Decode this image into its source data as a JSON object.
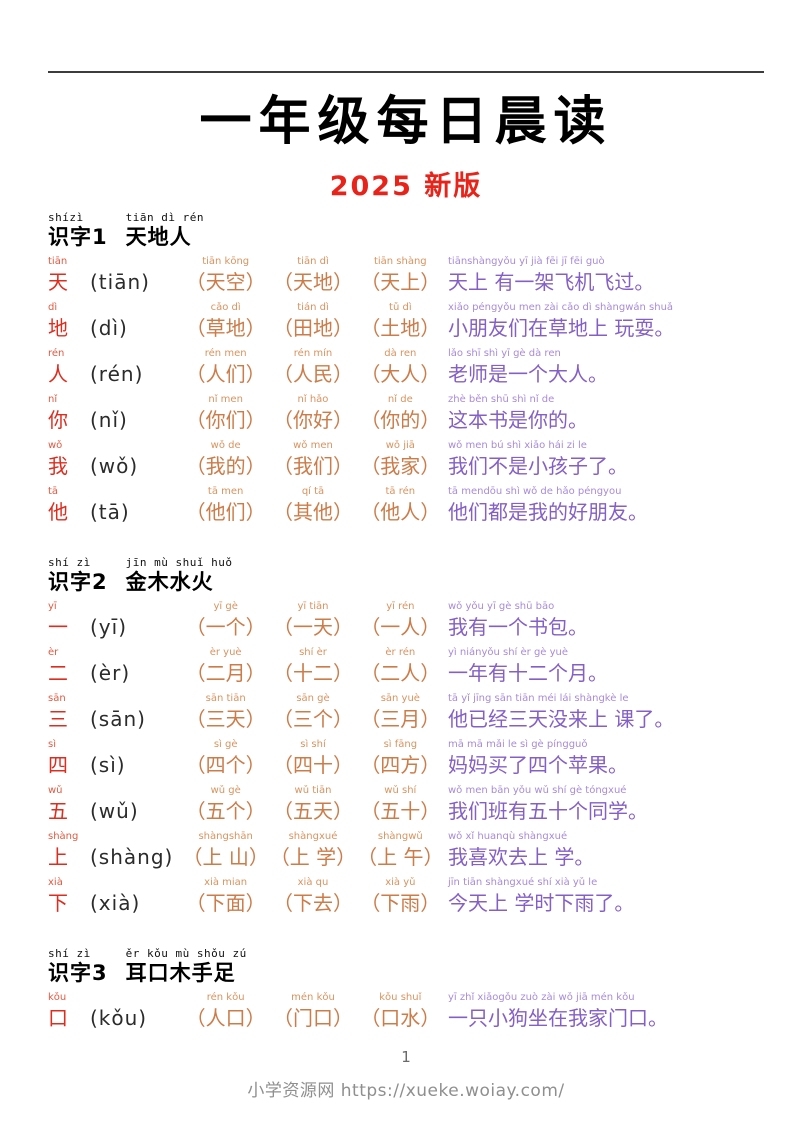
{
  "page": {
    "title": "一年级每日晨读",
    "edition": "2025 新版",
    "page_number": "1",
    "footer": "小学资源网 https://xueke.woiay.com/"
  },
  "colors": {
    "edition_red": "#e8231a",
    "char_red": "#dd2d1f",
    "char_pinyin_red": "#e05a41",
    "word_orange": "#cc7c49",
    "word_pinyin_orange": "#d8935f",
    "sentence_purple": "#8460c6",
    "sentence_pinyin_purple": "#a78bd8",
    "footer_gray": "#8f8f8f"
  },
  "sections": [
    {
      "label": "识字1",
      "label_pinyin": "shízì",
      "chars": "天地人",
      "chars_pinyin": "tiān dì rén",
      "rows": [
        {
          "char": "天",
          "char_pinyin": "tiān",
          "reading": "(tiān)",
          "words": [
            {
              "pinyin": "tiān kōng",
              "text": "（天空）"
            },
            {
              "pinyin": "tiān dì",
              "text": "（天地）"
            },
            {
              "pinyin": "tiān shàng",
              "text": "（天上）"
            }
          ],
          "sentence_pinyin": "tiānshàngyǒu yī  jià fēi jī  fēi guò",
          "sentence": "天上 有一架飞机飞过。"
        },
        {
          "char": "地",
          "char_pinyin": "dì",
          "reading": "(dì)",
          "words": [
            {
              "pinyin": "cǎo dì",
              "text": "（草地）"
            },
            {
              "pinyin": "tián dì",
              "text": "（田地）"
            },
            {
              "pinyin": "tǔ dì",
              "text": "（土地）"
            }
          ],
          "sentence_pinyin": "xiǎo péngyǒu men zài  cǎo dì  shàngwán shuǎ",
          "sentence": "小朋友们在草地上 玩耍。"
        },
        {
          "char": "人",
          "char_pinyin": "rén",
          "reading": "(rén)",
          "words": [
            {
              "pinyin": "rén men",
              "text": "（人们）"
            },
            {
              "pinyin": "rén mín",
              "text": "（人民）"
            },
            {
              "pinyin": "dà ren",
              "text": "（大人）"
            }
          ],
          "sentence_pinyin": "lǎo shī shì yī  gè dà ren",
          "sentence": "老师是一个大人。"
        },
        {
          "char": "你",
          "char_pinyin": "nǐ",
          "reading": "(nǐ)",
          "words": [
            {
              "pinyin": "nǐ men",
              "text": "（你们）"
            },
            {
              "pinyin": "nǐ hǎo",
              "text": "（你好）"
            },
            {
              "pinyin": "nǐ de",
              "text": "（你的）"
            }
          ],
          "sentence_pinyin": "zhè běn shū shì nǐ  de",
          "sentence": "这本书是你的。"
        },
        {
          "char": "我",
          "char_pinyin": "wǒ",
          "reading": "(wǒ)",
          "words": [
            {
              "pinyin": "wǒ de",
              "text": "（我的）"
            },
            {
              "pinyin": "wǒ men",
              "text": "（我们）"
            },
            {
              "pinyin": "wǒ jiā",
              "text": "（我家）"
            }
          ],
          "sentence_pinyin": "wǒ men bú shì xiǎo hái zi  le",
          "sentence": "我们不是小孩子了。"
        },
        {
          "char": "他",
          "char_pinyin": "tā",
          "reading": "(tā)",
          "words": [
            {
              "pinyin": "tā men",
              "text": "（他们）"
            },
            {
              "pinyin": "qí tā",
              "text": "（其他）"
            },
            {
              "pinyin": "tā rén",
              "text": "（他人）"
            }
          ],
          "sentence_pinyin": "tā  mendōu shì wǒ  de  hǎo péngyou",
          "sentence": "他们都是我的好朋友。"
        }
      ]
    },
    {
      "label": "识字2",
      "label_pinyin": "shí zì",
      "chars": "金木水火",
      "chars_pinyin": "jīn mù shuǐ huǒ",
      "rows": [
        {
          "char": "一",
          "char_pinyin": "yī",
          "reading": "(yī)",
          "words": [
            {
              "pinyin": "yī gè",
              "text": "（一个）"
            },
            {
              "pinyin": "yī tiān",
              "text": "（一天）"
            },
            {
              "pinyin": "yī rén",
              "text": "（一人）"
            }
          ],
          "sentence_pinyin": "wǒ yǒu yī  gè shū bāo",
          "sentence": "我有一个书包。"
        },
        {
          "char": "二",
          "char_pinyin": "èr",
          "reading": "(èr)",
          "words": [
            {
              "pinyin": "èr yuè",
              "text": "（二月）"
            },
            {
              "pinyin": "shí èr",
              "text": "（十二）"
            },
            {
              "pinyin": "èr rén",
              "text": "（二人）"
            }
          ],
          "sentence_pinyin": "yì  niányǒu shí èr  gè  yuè",
          "sentence": "一年有十二个月。"
        },
        {
          "char": "三",
          "char_pinyin": "sān",
          "reading": "(sān)",
          "words": [
            {
              "pinyin": "sān tiān",
              "text": "（三天）"
            },
            {
              "pinyin": "sān gè",
              "text": "（三个）"
            },
            {
              "pinyin": "sān yuè",
              "text": "（三月）"
            }
          ],
          "sentence_pinyin": "tā  yǐ  jīng sān tiān méi lái  shàngkè  le",
          "sentence": "他已经三天没来上 课了。"
        },
        {
          "char": "四",
          "char_pinyin": "sì",
          "reading": "(sì)",
          "words": [
            {
              "pinyin": "sì gè",
              "text": "（四个）"
            },
            {
              "pinyin": "sì shí",
              "text": "（四十）"
            },
            {
              "pinyin": "sì fāng",
              "text": "（四方）"
            }
          ],
          "sentence_pinyin": "mā mā mǎi le  sì  gè píngguǒ",
          "sentence": "妈妈买了四个苹果。"
        },
        {
          "char": "五",
          "char_pinyin": "wǔ",
          "reading": "(wǔ)",
          "words": [
            {
              "pinyin": "wǔ gè",
              "text": "（五个）"
            },
            {
              "pinyin": "wǔ tiān",
              "text": "（五天）"
            },
            {
              "pinyin": "wǔ shí",
              "text": "（五十）"
            }
          ],
          "sentence_pinyin": "wǒ men bān yǒu wǔ  shí gè  tóngxué",
          "sentence": "我们班有五十个同学。"
        },
        {
          "char": "上",
          "char_pinyin": "shàng",
          "reading": "(shàng)",
          "words": [
            {
              "pinyin": "shàngshān",
              "text": "（上 山）"
            },
            {
              "pinyin": "shàngxué",
              "text": "（上 学）"
            },
            {
              "pinyin": "shàngwǔ",
              "text": "（上 午）"
            }
          ],
          "sentence_pinyin": "wǒ xǐ  huanqù  shàngxué",
          "sentence": "我喜欢去上 学。"
        },
        {
          "char": "下",
          "char_pinyin": "xià",
          "reading": "(xià)",
          "words": [
            {
              "pinyin": "xià mian",
              "text": "（下面）"
            },
            {
              "pinyin": "xià qu",
              "text": "（下去）"
            },
            {
              "pinyin": "xià yǔ",
              "text": "（下雨）"
            }
          ],
          "sentence_pinyin": "jīn  tiān shàngxué shí  xià  yǔ  le",
          "sentence": "今天上 学时下雨了。"
        }
      ]
    },
    {
      "label": "识字3",
      "label_pinyin": "shí zì",
      "chars": "耳口木手足",
      "chars_pinyin": "ěr kǒu mù shǒu zú",
      "rows": [
        {
          "char": "口",
          "char_pinyin": "kǒu",
          "reading": "(kǒu)",
          "words": [
            {
              "pinyin": "rén kǒu",
              "text": "（人口）"
            },
            {
              "pinyin": "mén kǒu",
              "text": "（门口）"
            },
            {
              "pinyin": "kǒu shuǐ",
              "text": "（口水）"
            }
          ],
          "sentence_pinyin": "yī  zhǐ  xiǎogǒu zuò zài wǒ  jiā mén kǒu",
          "sentence": "一只小狗坐在我家门口。"
        }
      ]
    }
  ]
}
